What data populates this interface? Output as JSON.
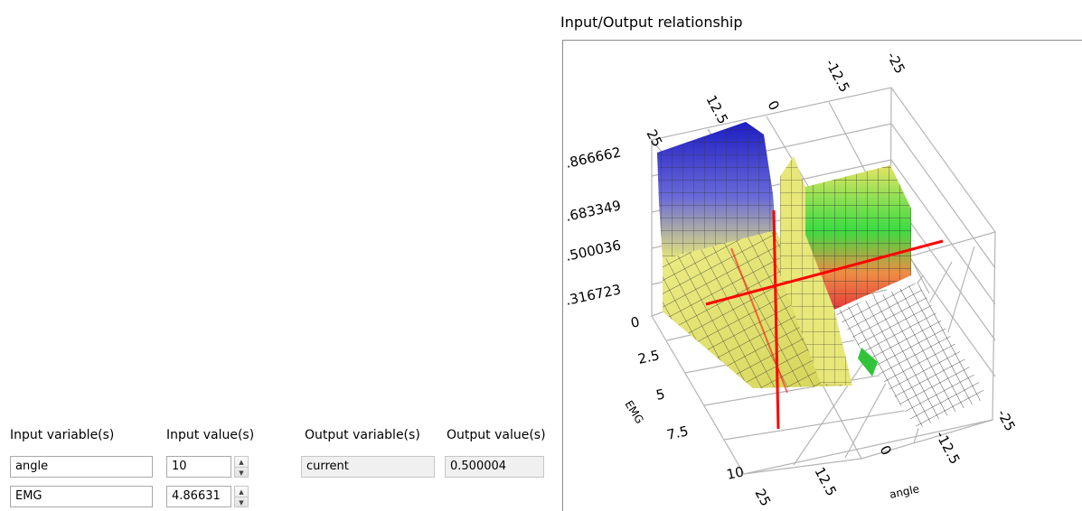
{
  "io_panel": {
    "headers": {
      "input_variables": "Input variable(s)",
      "input_values": "Input value(s)",
      "output_variables": "Output variable(s)",
      "output_values": "Output value(s)"
    },
    "inputs": [
      {
        "name": "angle",
        "value": "10"
      },
      {
        "name": "EMG",
        "value": "4.86631"
      }
    ],
    "outputs": [
      {
        "name": "current",
        "value": "0.500004"
      }
    ]
  },
  "plot": {
    "title": "Input/Output relationship",
    "z_ticks": [
      ".866662",
      ".683349",
      ".500036",
      ".316723",
      "0"
    ],
    "emg_ticks": [
      "0",
      "2.5",
      "5",
      "7.5",
      "10"
    ],
    "angle_ticks_bottom": [
      "25",
      "12.5",
      "0",
      "-12.5",
      "-25"
    ],
    "angle_ticks_top": [
      "25",
      "12.5",
      "0",
      "-12.5",
      "-25"
    ],
    "x_label": "angle",
    "y_label": "EMG",
    "colors": {
      "high": "#2a2aa8",
      "mid": "#e8e870",
      "green": "#33dd44",
      "low": "#e83a3a",
      "zero": "#ffffff",
      "marker": "#ff0000",
      "grid": "#b4b4b4"
    }
  },
  "chart_data": {
    "type": "surface",
    "title": "Input/Output relationship",
    "xlabel": "angle",
    "ylabel": "EMG",
    "zlabel": "",
    "xlim": [
      25,
      -25
    ],
    "ylim": [
      0,
      10
    ],
    "zlim": [
      0,
      0.866662
    ],
    "marker": {
      "angle": 10,
      "EMG": 4.86631,
      "output": 0.500004
    }
  }
}
